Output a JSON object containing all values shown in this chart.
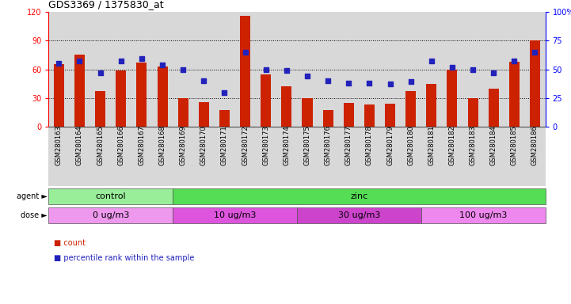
{
  "title": "GDS3369 / 1375830_at",
  "samples": [
    "GSM280163",
    "GSM280164",
    "GSM280165",
    "GSM280166",
    "GSM280167",
    "GSM280168",
    "GSM280169",
    "GSM280170",
    "GSM280171",
    "GSM280172",
    "GSM280173",
    "GSM280174",
    "GSM280175",
    "GSM280176",
    "GSM280177",
    "GSM280178",
    "GSM280179",
    "GSM280180",
    "GSM280181",
    "GSM280182",
    "GSM280183",
    "GSM280184",
    "GSM280185",
    "GSM280186"
  ],
  "counts": [
    65,
    75,
    37,
    59,
    67,
    63,
    30,
    26,
    17,
    116,
    55,
    42,
    30,
    17,
    25,
    23,
    24,
    37,
    45,
    60,
    30,
    40,
    68,
    90
  ],
  "percentiles": [
    55,
    57,
    47,
    57,
    59,
    54,
    50,
    40,
    30,
    65,
    50,
    49,
    44,
    40,
    38,
    38,
    37,
    39,
    57,
    52,
    50,
    47,
    57,
    65
  ],
  "bar_color": "#cc2200",
  "dot_color": "#2222bb",
  "plot_bg_color": "#d8d8d8",
  "tick_bg_color": "#d8d8d8",
  "fig_bg_color": "#ffffff",
  "left_ylim": [
    0,
    120
  ],
  "right_ylim": [
    0,
    100
  ],
  "left_yticks": [
    0,
    30,
    60,
    90,
    120
  ],
  "right_yticks": [
    0,
    25,
    50,
    75,
    100
  ],
  "right_yticklabels": [
    "0",
    "25",
    "50",
    "75",
    "100%"
  ],
  "agent_groups": [
    {
      "label": "control",
      "start": 0,
      "end": 6,
      "color": "#99ee99"
    },
    {
      "label": "zinc",
      "start": 6,
      "end": 24,
      "color": "#55dd55"
    }
  ],
  "dose_groups": [
    {
      "label": "0 ug/m3",
      "start": 0,
      "end": 6,
      "color": "#ee99ee"
    },
    {
      "label": "10 ug/m3",
      "start": 6,
      "end": 12,
      "color": "#dd55dd"
    },
    {
      "label": "30 ug/m3",
      "start": 12,
      "end": 18,
      "color": "#cc44cc"
    },
    {
      "label": "100 ug/m3",
      "start": 18,
      "end": 24,
      "color": "#ee88ee"
    }
  ],
  "title_fontsize": 9,
  "ytick_fontsize": 7,
  "xtick_fontsize": 6,
  "group_fontsize": 8,
  "label_fontsize": 7,
  "legend_fontsize": 7
}
